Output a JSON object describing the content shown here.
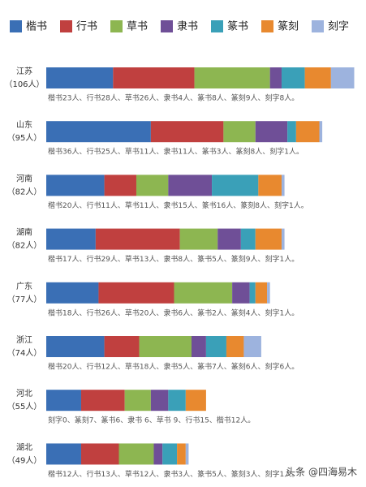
{
  "chart_data": {
    "type": "stacked-bar-horizontal",
    "categories": [
      "江苏",
      "山东",
      "河南",
      "湖南",
      "广东",
      "浙江",
      "河北",
      "湖北"
    ],
    "category_counts": [
      "（106人）",
      "（95人）",
      "（82人）",
      "（82人）",
      "（77人）",
      "（74人）",
      "（55人）",
      "（49人）"
    ],
    "series": [
      {
        "name": "楷书",
        "color": "#3a6fb5",
        "values": [
          23,
          36,
          20,
          17,
          18,
          20,
          12,
          12
        ]
      },
      {
        "name": "行书",
        "color": "#c0403f",
        "values": [
          28,
          25,
          11,
          29,
          26,
          12,
          15,
          13
        ]
      },
      {
        "name": "草书",
        "color": "#8db651",
        "values": [
          26,
          11,
          11,
          13,
          20,
          18,
          9,
          12
        ]
      },
      {
        "name": "隶书",
        "color": "#6f4f97",
        "values": [
          4,
          11,
          15,
          8,
          6,
          5,
          6,
          3
        ]
      },
      {
        "name": "篆书",
        "color": "#3aa0b8",
        "values": [
          8,
          3,
          16,
          5,
          2,
          7,
          6,
          5
        ]
      },
      {
        "name": "篆刻",
        "color": "#e8892f",
        "values": [
          9,
          8,
          8,
          9,
          4,
          6,
          7,
          3
        ]
      },
      {
        "name": "刻字",
        "color": "#9db3de",
        "values": [
          8,
          1,
          1,
          1,
          1,
          6,
          0,
          1
        ]
      }
    ],
    "notes": [
      "楷书23人、行书28人、草书26人、隶书4人、篆书8人、篆刻9人、刻字8人。",
      "楷书36人、行书25人、草书11人、隶书11人、篆书3人、篆刻8人、刻字1人。",
      "楷书20人、行书11人、草书11人、隶书15人、篆书16人、篆刻8人、刻字1人。",
      "楷书17人、行书29人、草书13人、隶书8人、篆书5人、篆刻9人、刻字1人。",
      "楷书18人、行书26人、草书20人、隶书6人、篆书2人、篆刻4人、刻字1人。",
      "楷书20人、行书12人、草书18人、隶书5人、篆书7人、篆刻6人、刻字6人。",
      "刻字0、篆刻7、篆书6、隶书 6、草书 9、行书15、楷书12人。",
      "楷书12人、行书13人、草书12人、隶书3人、篆书5人、篆刻3人、刻字1人。"
    ],
    "watermark": "头条 @四海易木"
  }
}
